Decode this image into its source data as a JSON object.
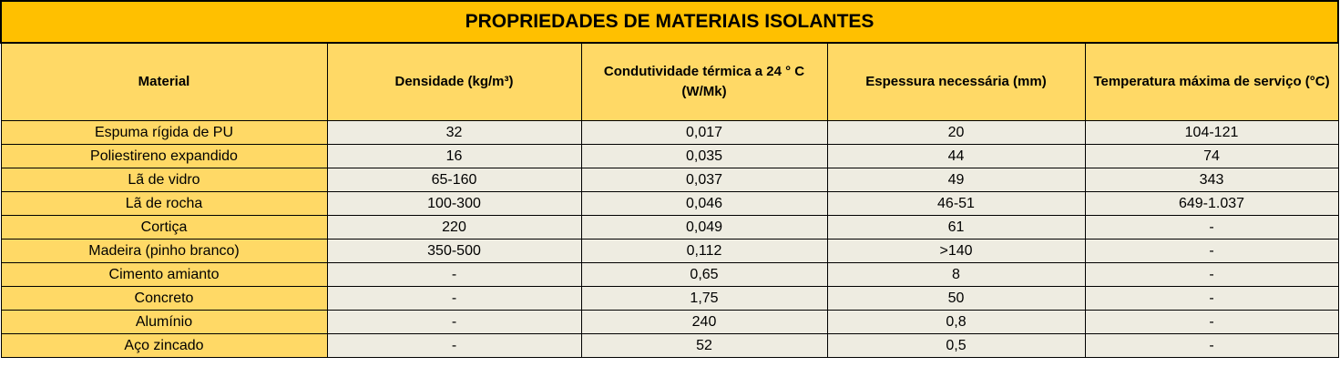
{
  "table": {
    "title": "PROPRIEDADES DE MATERIAIS  ISOLANTES",
    "headers": [
      "Material",
      "Densidade (kg/m³)",
      "Condutividade térmica a 24 ° C (W/Mk)",
      "Espessura necessária (mm)",
      "Temperatura máxima de serviço (°C)"
    ],
    "rows": [
      [
        "Espuma rígida de PU",
        "32",
        "0,017",
        "20",
        "104-121"
      ],
      [
        "Poliestireno expandido",
        "16",
        "0,035",
        "44",
        "74"
      ],
      [
        "Lã de vidro",
        "65-160",
        "0,037",
        "49",
        "343"
      ],
      [
        "Lã de rocha",
        "100-300",
        "0,046",
        "46-51",
        "649-1.037"
      ],
      [
        "Cortiça",
        "220",
        "0,049",
        "61",
        "-"
      ],
      [
        "Madeira (pinho branco)",
        "350-500",
        "0,112",
        ">140",
        "-"
      ],
      [
        "Cimento amianto",
        "-",
        "0,65",
        "8",
        "-"
      ],
      [
        "Concreto",
        "-",
        "1,75",
        "50",
        "-"
      ],
      [
        "Alumínio",
        "-",
        "240",
        "0,8",
        "-"
      ],
      [
        "Aço zincado",
        "-",
        "52",
        "0,5",
        "-"
      ]
    ],
    "colors": {
      "title_bg": "#ffc000",
      "header_bg": "#ffd966",
      "cell_bg": "#eeece1"
    }
  }
}
